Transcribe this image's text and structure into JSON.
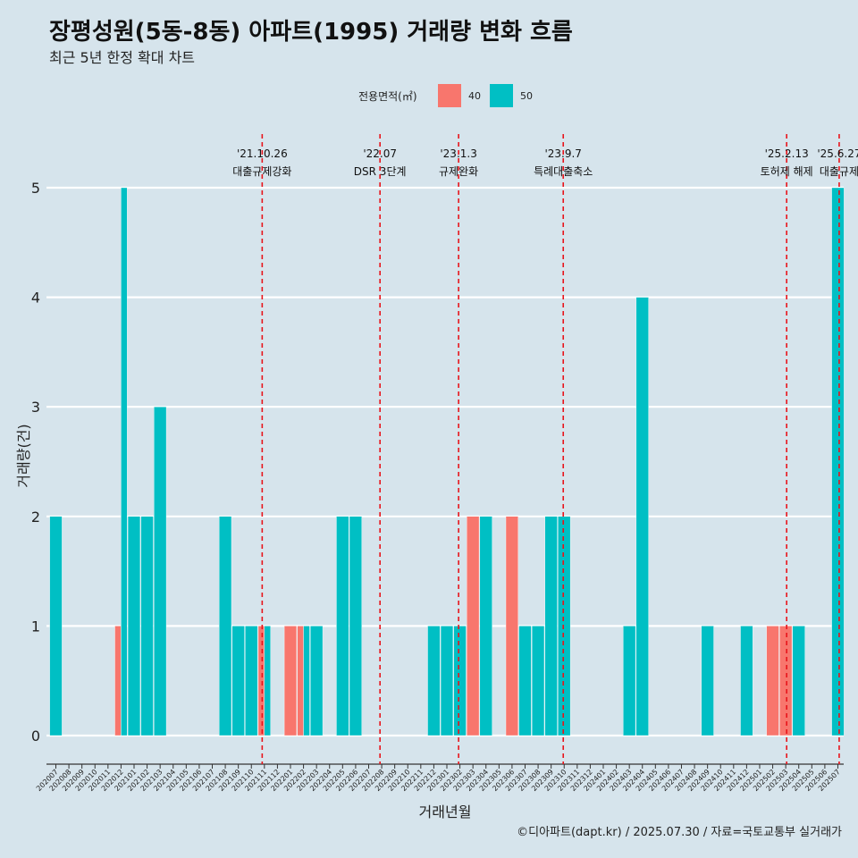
{
  "header": {
    "title": "장평성원(5동-8동) 아파트(1995) 거래량 변화 흐름",
    "subtitle": "최근 5년 한정 확대 차트"
  },
  "caption": "©디아파트(dapt.kr) / 2025.07.30 / 자료=국토교통부 실거래가",
  "legend": {
    "title": "전용면적(㎡)",
    "items": [
      {
        "label": "40",
        "color": "#f8766d"
      },
      {
        "label": "50",
        "color": "#00bfc4"
      }
    ]
  },
  "chart_data": {
    "type": "bar",
    "stacked": false,
    "xlabel": "거래년월",
    "ylabel": "거래량(건)",
    "ylim": [
      0,
      5
    ],
    "yticks": [
      0,
      1,
      2,
      3,
      4,
      5
    ],
    "categories": [
      "202007",
      "202008",
      "202009",
      "202010",
      "202011",
      "202012",
      "202101",
      "202102",
      "202103",
      "202104",
      "202105",
      "202106",
      "202107",
      "202108",
      "202109",
      "202110",
      "202111",
      "202112",
      "202201",
      "202202",
      "202203",
      "202204",
      "202205",
      "202206",
      "202207",
      "202208",
      "202209",
      "202210",
      "202211",
      "202212",
      "202301",
      "202302",
      "202303",
      "202304",
      "202305",
      "202306",
      "202307",
      "202308",
      "202309",
      "202310",
      "202311",
      "202312",
      "202401",
      "202402",
      "202403",
      "202404",
      "202405",
      "202406",
      "202407",
      "202408",
      "202409",
      "202410",
      "202411",
      "202412",
      "202501",
      "202502",
      "202503",
      "202504",
      "202505",
      "202506",
      "202507"
    ],
    "series": [
      {
        "name": "40",
        "color": "#f8766d",
        "values": [
          0,
          0,
          0,
          0,
          0,
          1,
          0,
          0,
          0,
          0,
          0,
          0,
          0,
          0,
          0,
          0,
          1,
          0,
          1,
          1,
          0,
          0,
          0,
          0,
          0,
          0,
          0,
          0,
          0,
          0,
          0,
          0,
          2,
          0,
          0,
          2,
          0,
          0,
          0,
          0,
          0,
          0,
          0,
          0,
          0,
          0,
          0,
          0,
          0,
          0,
          0,
          0,
          0,
          0,
          0,
          1,
          1,
          0,
          0,
          0,
          0
        ]
      },
      {
        "name": "50",
        "color": "#00bfc4",
        "values": [
          2,
          0,
          0,
          0,
          0,
          5,
          2,
          2,
          3,
          0,
          0,
          0,
          0,
          2,
          1,
          1,
          1,
          0,
          0,
          1,
          1,
          0,
          2,
          2,
          0,
          0,
          0,
          0,
          0,
          1,
          1,
          1,
          0,
          2,
          0,
          0,
          1,
          1,
          2,
          2,
          0,
          0,
          0,
          0,
          1,
          4,
          0,
          0,
          0,
          0,
          1,
          0,
          0,
          1,
          0,
          0,
          0,
          1,
          0,
          0,
          5
        ]
      }
    ],
    "annotations": [
      {
        "date_label": "'21.10.26",
        "text": "대출규제강화",
        "x_index": 15.83
      },
      {
        "date_label": "'22.07",
        "text": "DSR 3단계",
        "x_index": 24.87
      },
      {
        "date_label": "'23.1.3",
        "text": "규제완화",
        "x_index": 30.9
      },
      {
        "date_label": "'23.9.7",
        "text": "특례대출축소",
        "x_index": 38.93
      },
      {
        "date_label": "'25.2.13",
        "text": "토허제 해제",
        "x_index": 56.07
      },
      {
        "date_label": "'25.6.27",
        "text": "대출규제",
        "x_index": 60.1
      }
    ]
  }
}
